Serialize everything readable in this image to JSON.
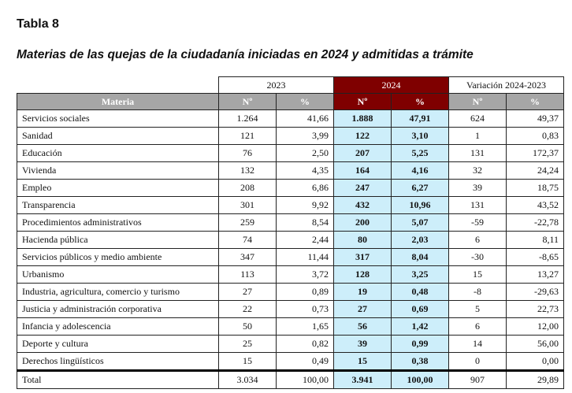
{
  "title": "Tabla 8",
  "subtitle": "Materias de las quejas de la ciudadanía iniciadas en 2024 y admitidas a trámite",
  "groups": {
    "y2023": "2023",
    "y2024": "2024",
    "var": "Variación 2024-2023"
  },
  "columns": {
    "materia": "Materia",
    "n": "Nº",
    "pct": "%"
  },
  "rows": [
    [
      "Servicios sociales",
      "1.264",
      "41,66",
      "1.888",
      "47,91",
      "624",
      "49,37"
    ],
    [
      "Sanidad",
      "121",
      "3,99",
      "122",
      "3,10",
      "1",
      "0,83"
    ],
    [
      "Educación",
      "76",
      "2,50",
      "207",
      "5,25",
      "131",
      "172,37"
    ],
    [
      "Vivienda",
      "132",
      "4,35",
      "164",
      "4,16",
      "32",
      "24,24"
    ],
    [
      "Empleo",
      "208",
      "6,86",
      "247",
      "6,27",
      "39",
      "18,75"
    ],
    [
      "Transparencia",
      "301",
      "9,92",
      "432",
      "10,96",
      "131",
      "43,52"
    ],
    [
      "Procedimientos administrativos",
      "259",
      "8,54",
      "200",
      "5,07",
      "-59",
      "-22,78"
    ],
    [
      "Hacienda pública",
      "74",
      "2,44",
      "80",
      "2,03",
      "6",
      "8,11"
    ],
    [
      "Servicios públicos y medio ambiente",
      "347",
      "11,44",
      "317",
      "8,04",
      "-30",
      "-8,65"
    ],
    [
      "Urbanismo",
      "113",
      "3,72",
      "128",
      "3,25",
      "15",
      "13,27"
    ],
    [
      "Industria, agricultura, comercio y turismo",
      "27",
      "0,89",
      "19",
      "0,48",
      "-8",
      "-29,63"
    ],
    [
      "Justicia y administración corporativa",
      "22",
      "0,73",
      "27",
      "0,69",
      "5",
      "22,73"
    ],
    [
      "Infancia y adolescencia",
      "50",
      "1,65",
      "56",
      "1,42",
      "6",
      "12,00"
    ],
    [
      "Deporte y cultura",
      "25",
      "0,82",
      "39",
      "0,99",
      "14",
      "56,00"
    ],
    [
      "Derechos lingüísticos",
      "15",
      "0,49",
      "15",
      "0,38",
      "0",
      "0,00"
    ]
  ],
  "total": [
    "Total",
    "3.034",
    "100,00",
    "3.941",
    "100,00",
    "907",
    "29,89"
  ]
}
